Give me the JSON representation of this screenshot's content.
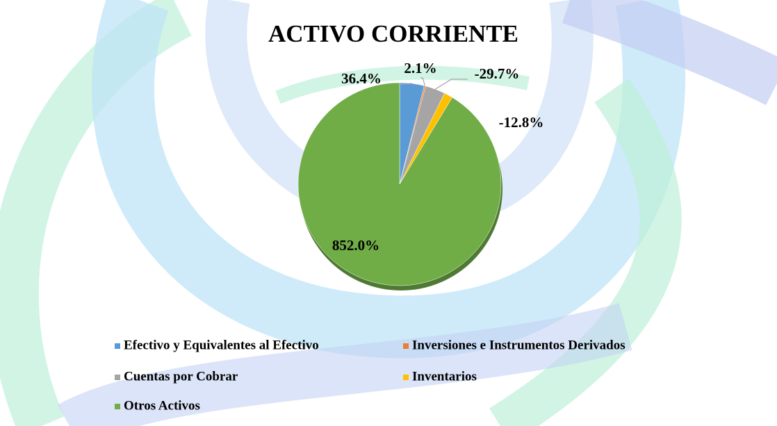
{
  "chart_data": {
    "type": "pie",
    "title": "ACTIVO CORRIENTE",
    "categories": [
      "Efectivo y Equivalentes al Efectivo",
      "Inversiones e Instrumentos Derivados",
      "Cuentas por Cobrar",
      "Inventarios",
      "Otros Activos"
    ],
    "values": [
      36.4,
      2.1,
      -29.7,
      -12.8,
      852.0
    ],
    "value_labels": [
      "36.4%",
      "2.1%",
      "-29.7%",
      "-12.8%",
      "852.0%"
    ],
    "colors": [
      "#5b9bd5",
      "#ed7d31",
      "#a5a5a5",
      "#ffc000",
      "#70ad47"
    ],
    "legend": "bottom"
  }
}
